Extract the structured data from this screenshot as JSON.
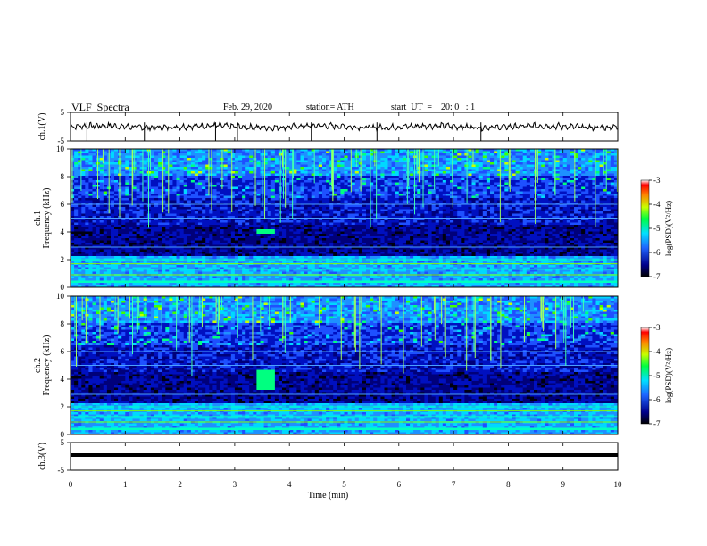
{
  "header": {
    "title": "VLF  Spectra",
    "date": "Feb. 29, 2020",
    "station": "station= ATH",
    "start": "start  UT  =    20: 0   : 1"
  },
  "chart_data": [
    {
      "type": "line",
      "panel": "waveform-ch1",
      "ylabel": "ch.1(V)",
      "ylim": [
        -5,
        5
      ],
      "yticks": [
        "5",
        "-5"
      ],
      "xlim": [
        0,
        10
      ],
      "series_description": "noise waveform near 0 V",
      "color": "#000000"
    },
    {
      "type": "heatmap",
      "panel": "spectrogram-ch1",
      "ylabel": "ch.1\nFrequency (kHz)",
      "ylim": [
        0,
        10
      ],
      "yticks": [
        "0",
        "2",
        "4",
        "6",
        "8",
        "10"
      ],
      "xlim": [
        0,
        10
      ],
      "colorbar": {
        "label": "log(PSD)(V²/Hz)",
        "range": [
          -7,
          -3
        ],
        "ticks": [
          "-3",
          "-4",
          "-5",
          "-6",
          "-7"
        ]
      },
      "features": [
        {
          "name": "band",
          "freq_khz": [
            3.8,
            4.2
          ],
          "time_min": [
            3.4,
            3.75
          ],
          "level": -5
        },
        {
          "name": "strong-lines",
          "freq_khz": [
            0.3,
            2.2
          ],
          "level": -4.5
        }
      ]
    },
    {
      "type": "heatmap",
      "panel": "spectrogram-ch2",
      "ylabel": "ch.2\nFrequency (kHz)",
      "ylim": [
        0,
        10
      ],
      "yticks": [
        "0",
        "2",
        "4",
        "6",
        "8",
        "10"
      ],
      "xlim": [
        0,
        10
      ],
      "colorbar": {
        "label": "log(PSD)(V²/Hz)",
        "range": [
          -7,
          -3
        ],
        "ticks": [
          "-3",
          "-4",
          "-5",
          "-6",
          "-7"
        ]
      },
      "features": [
        {
          "name": "band",
          "freq_khz": [
            3.3,
            4.6
          ],
          "time_min": [
            3.4,
            3.75
          ],
          "level": -5
        },
        {
          "name": "strong-lines",
          "freq_khz": [
            0.3,
            2.2
          ],
          "level": -4.5
        }
      ]
    },
    {
      "type": "line",
      "panel": "waveform-ch3",
      "ylabel": "ch.3(V)",
      "ylim": [
        -5,
        5
      ],
      "yticks": [
        "5",
        "-5"
      ],
      "xlim": [
        0,
        10
      ],
      "series_description": "flat line near 0 V",
      "color": "#000000"
    }
  ],
  "xaxis": {
    "label": "Time  (min)",
    "ticks": [
      "0",
      "1",
      "2",
      "3",
      "4",
      "5",
      "6",
      "7",
      "8",
      "9",
      "10"
    ]
  }
}
